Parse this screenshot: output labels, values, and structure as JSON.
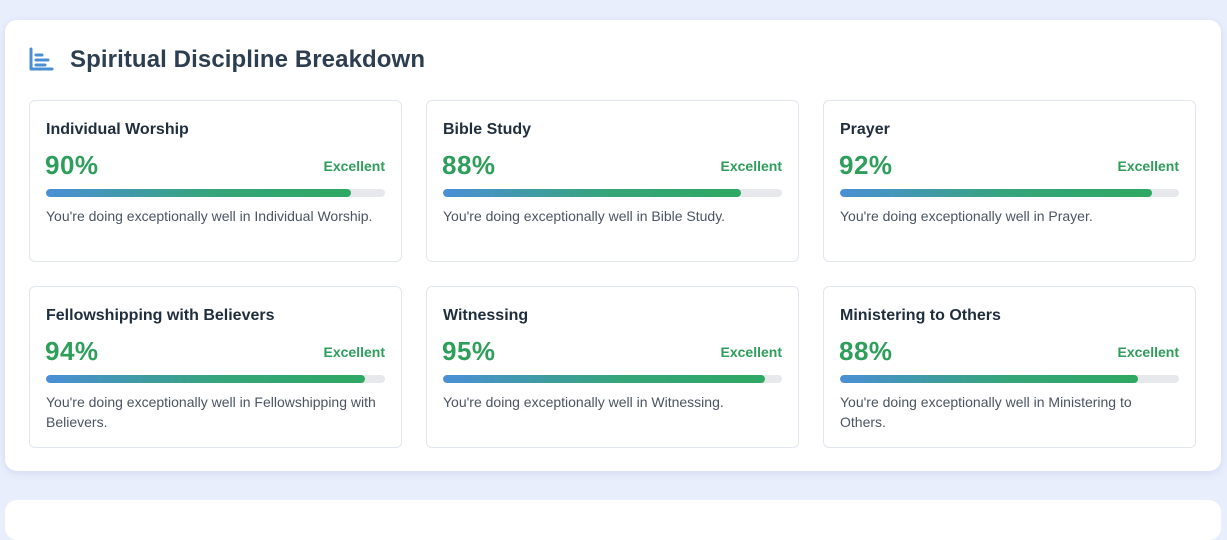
{
  "section": {
    "title": "Spiritual Discipline Breakdown",
    "icon": "bar-chart-icon"
  },
  "colors": {
    "accent_green": "#2e9e5b",
    "bar_start": "#4a8fd6",
    "bar_end": "#2ea862",
    "title_dark": "#2c3e50"
  },
  "cards": [
    {
      "title": "Individual Worship",
      "percent": "90%",
      "value": 0.9,
      "rating": "Excellent",
      "description": "You're doing exceptionally well in Individual Worship."
    },
    {
      "title": "Bible Study",
      "percent": "88%",
      "value": 0.88,
      "rating": "Excellent",
      "description": "You're doing exceptionally well in Bible Study."
    },
    {
      "title": "Prayer",
      "percent": "92%",
      "value": 0.92,
      "rating": "Excellent",
      "description": "You're doing exceptionally well in Prayer."
    },
    {
      "title": "Fellowshipping with Believers",
      "percent": "94%",
      "value": 0.94,
      "rating": "Excellent",
      "description": "You're doing exceptionally well in Fellowshipping with Believers."
    },
    {
      "title": "Witnessing",
      "percent": "95%",
      "value": 0.95,
      "rating": "Excellent",
      "description": "You're doing exceptionally well in Witnessing."
    },
    {
      "title": "Ministering to Others",
      "percent": "88%",
      "value": 0.88,
      "rating": "Excellent",
      "description": "You're doing exceptionally well in Ministering to Others."
    }
  ]
}
